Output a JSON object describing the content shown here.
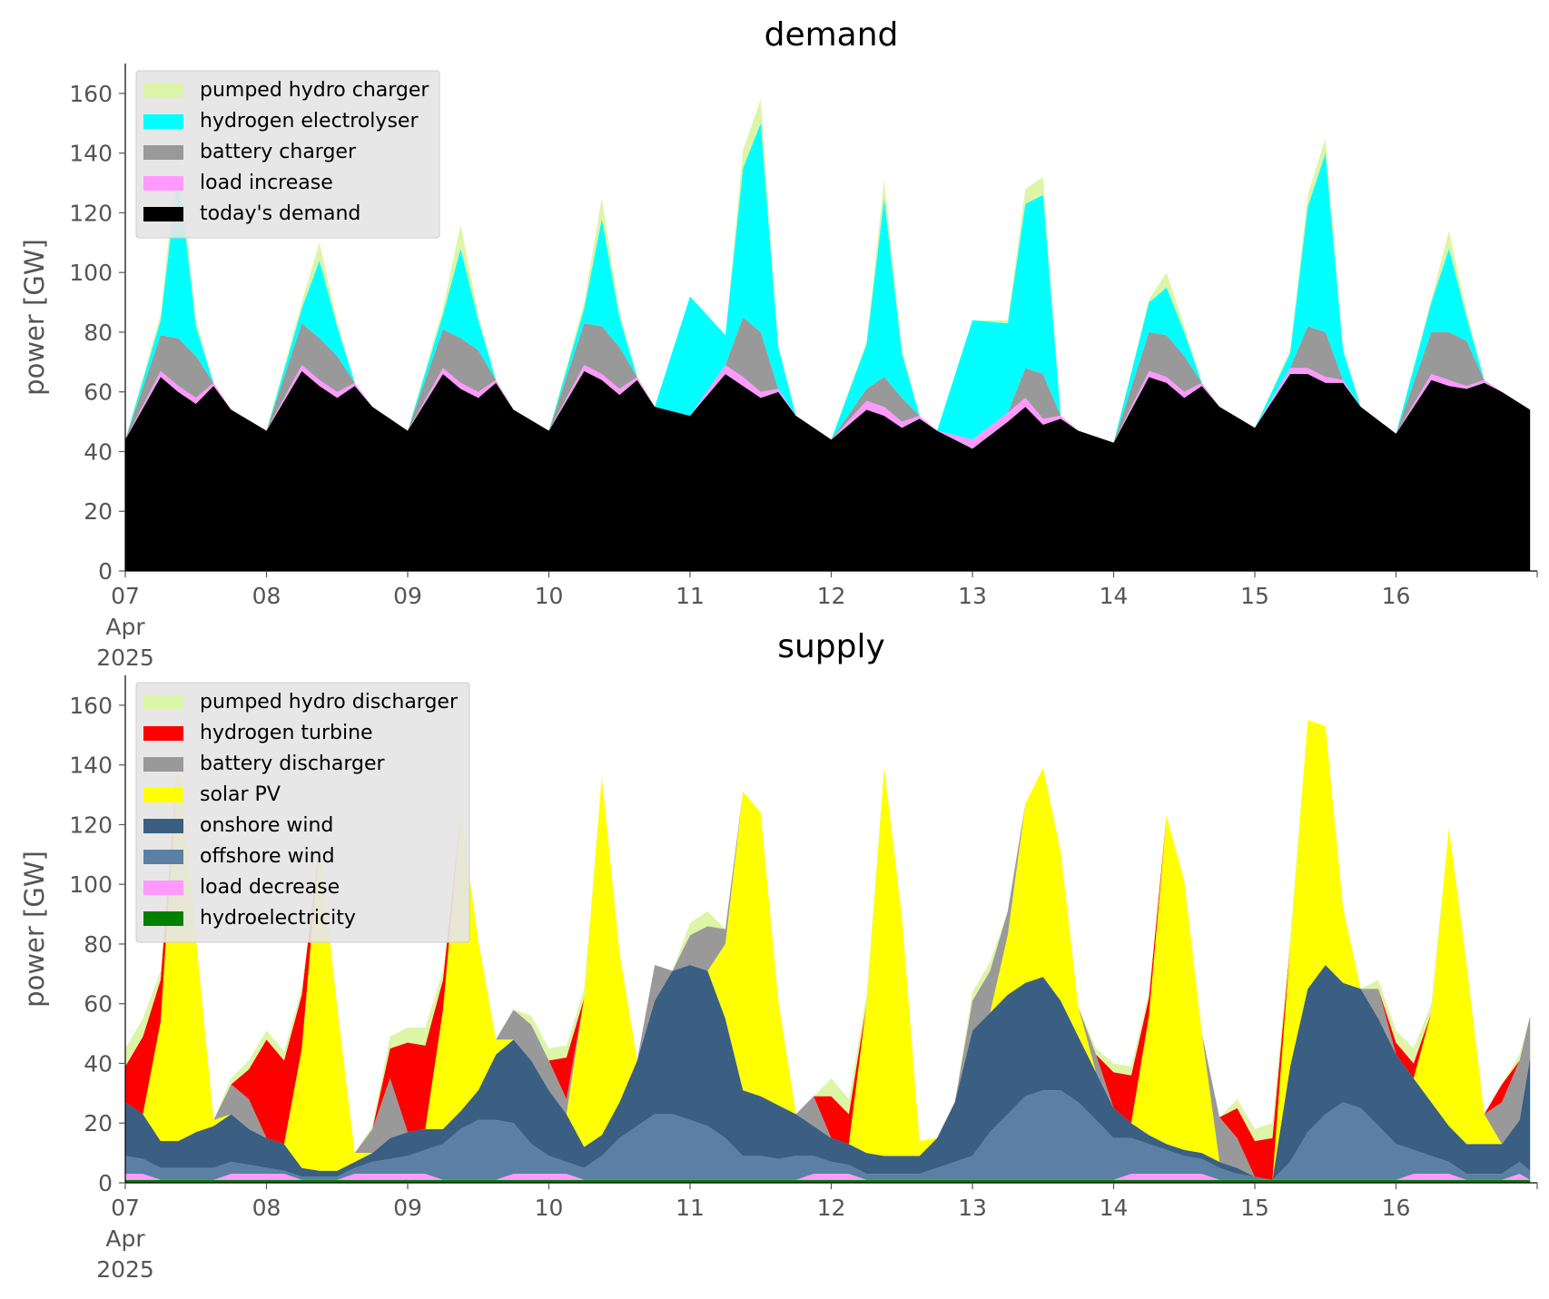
{
  "chart_data": [
    {
      "type": "area",
      "stacked": true,
      "title": "demand",
      "ylabel": "power [GW]",
      "xlabel": "",
      "x_unit": "days",
      "x_ticks": [
        "07\nApr\n2025",
        "08",
        "09",
        "10",
        "11",
        "12",
        "13",
        "14",
        "15",
        "16"
      ],
      "ylim": [
        0,
        170
      ],
      "xlim": [
        "2025-04-07",
        "2025-04-17"
      ],
      "yticks": [
        0,
        20,
        40,
        60,
        80,
        100,
        120,
        140,
        160
      ],
      "grid": false,
      "legend_position": "upper left",
      "x": [
        0,
        0.25,
        0.375,
        0.5,
        0.625,
        0.75,
        1,
        1.25,
        1.375,
        1.5,
        1.625,
        1.75,
        2,
        2.25,
        2.375,
        2.5,
        2.625,
        2.75,
        3,
        3.25,
        3.375,
        3.5,
        3.625,
        3.75,
        4,
        4.25,
        4.375,
        4.5,
        4.625,
        4.75,
        5,
        5.25,
        5.375,
        5.5,
        5.625,
        5.75,
        6,
        6.25,
        6.375,
        6.5,
        6.625,
        6.75,
        7,
        7.25,
        7.375,
        7.5,
        7.625,
        7.75,
        8,
        8.25,
        8.375,
        8.5,
        8.625,
        8.75,
        9,
        9.25,
        9.375,
        9.5,
        9.625,
        9.75,
        9.95
      ],
      "series": [
        {
          "name": "today's demand",
          "color": "#000000",
          "values": [
            44,
            65,
            60,
            56,
            62,
            54,
            47,
            67,
            62,
            58,
            62,
            55,
            47,
            66,
            61,
            58,
            63,
            54,
            47,
            67,
            64,
            59,
            64,
            55,
            52,
            66,
            62,
            58,
            60,
            52,
            44,
            54,
            52,
            48,
            51,
            47,
            41,
            50,
            55,
            49,
            51,
            47,
            43,
            65,
            63,
            58,
            62,
            55,
            48,
            66,
            66,
            63,
            63,
            55,
            46,
            64,
            62,
            61,
            63,
            60,
            54
          ]
        },
        {
          "name": "load increase",
          "color": "#ff99ff",
          "values": [
            0,
            2,
            2,
            2,
            1,
            0,
            0,
            2,
            2,
            2,
            1,
            0,
            0,
            2,
            2,
            2,
            1,
            0,
            0,
            2,
            2,
            2,
            1,
            0,
            0,
            3,
            3,
            2,
            1,
            0,
            0,
            3,
            3,
            2,
            1,
            0,
            3,
            3,
            3,
            2,
            1,
            0,
            0,
            2,
            2,
            2,
            1,
            0,
            0,
            2,
            2,
            2,
            1,
            0,
            0,
            2,
            2,
            1,
            1,
            0,
            0
          ]
        },
        {
          "name": "battery charger",
          "color": "#999999",
          "values": [
            0,
            12,
            16,
            14,
            0,
            0,
            0,
            14,
            14,
            12,
            0,
            0,
            0,
            13,
            15,
            14,
            0,
            0,
            0,
            14,
            16,
            14,
            0,
            0,
            0,
            0,
            20,
            20,
            0,
            0,
            0,
            4,
            10,
            8,
            0,
            0,
            0,
            0,
            10,
            15,
            0,
            0,
            0,
            13,
            14,
            12,
            0,
            0,
            0,
            0,
            14,
            15,
            0,
            0,
            0,
            14,
            16,
            15,
            0,
            0,
            0
          ]
        },
        {
          "name": "hydrogen electrolyser",
          "color": "#00ffff",
          "values": [
            0,
            5,
            56,
            10,
            0,
            0,
            0,
            5,
            26,
            10,
            0,
            0,
            0,
            5,
            30,
            10,
            0,
            0,
            0,
            5,
            36,
            10,
            0,
            0,
            40,
            10,
            50,
            70,
            14,
            0,
            0,
            15,
            60,
            15,
            0,
            0,
            40,
            30,
            55,
            60,
            0,
            0,
            0,
            10,
            16,
            8,
            0,
            0,
            0,
            5,
            40,
            60,
            10,
            0,
            0,
            10,
            28,
            8,
            0,
            0,
            0
          ]
        },
        {
          "name": "pumped hydro charger",
          "color": "#dcf5a6",
          "values": [
            0,
            2,
            8,
            2,
            0,
            0,
            0,
            2,
            6,
            2,
            0,
            0,
            0,
            2,
            8,
            2,
            0,
            0,
            0,
            2,
            7,
            2,
            0,
            0,
            0,
            0,
            6,
            8,
            0,
            0,
            0,
            1,
            6,
            2,
            0,
            0,
            0,
            1,
            5,
            6,
            0,
            0,
            0,
            1,
            5,
            2,
            0,
            0,
            0,
            1,
            4,
            5,
            0,
            0,
            0,
            1,
            6,
            2,
            0,
            0,
            0
          ]
        }
      ]
    },
    {
      "type": "area",
      "stacked": true,
      "title": "supply",
      "ylabel": "power [GW]",
      "xlabel": "",
      "x_unit": "days",
      "x_ticks": [
        "07\nApr\n2025",
        "08",
        "09",
        "10",
        "11",
        "12",
        "13",
        "14",
        "15",
        "16"
      ],
      "ylim": [
        0,
        170
      ],
      "xlim": [
        "2025-04-07",
        "2025-04-17"
      ],
      "yticks": [
        0,
        20,
        40,
        60,
        80,
        100,
        120,
        140,
        160
      ],
      "grid": false,
      "legend_position": "upper left",
      "x": [
        0,
        0.125,
        0.25,
        0.375,
        0.5,
        0.625,
        0.75,
        0.875,
        1,
        1.125,
        1.25,
        1.375,
        1.5,
        1.625,
        1.75,
        1.875,
        2,
        2.125,
        2.25,
        2.375,
        2.5,
        2.625,
        2.75,
        2.875,
        3,
        3.125,
        3.25,
        3.375,
        3.5,
        3.625,
        3.75,
        3.875,
        4,
        4.125,
        4.25,
        4.375,
        4.5,
        4.625,
        4.75,
        4.875,
        5,
        5.125,
        5.25,
        5.375,
        5.5,
        5.625,
        5.75,
        5.875,
        6,
        6.125,
        6.25,
        6.375,
        6.5,
        6.625,
        6.75,
        6.875,
        7,
        7.125,
        7.25,
        7.375,
        7.5,
        7.625,
        7.75,
        7.875,
        8,
        8.125,
        8.25,
        8.375,
        8.5,
        8.625,
        8.75,
        8.875,
        9,
        9.125,
        9.25,
        9.375,
        9.5,
        9.625,
        9.75,
        9.875,
        9.95
      ],
      "series": [
        {
          "name": "hydroelectricity",
          "color": "#008000",
          "values": [
            1,
            1,
            1,
            1,
            1,
            1,
            1,
            1,
            1,
            1,
            1,
            1,
            1,
            1,
            1,
            1,
            1,
            1,
            1,
            1,
            1,
            1,
            1,
            1,
            1,
            1,
            1,
            1,
            1,
            1,
            1,
            1,
            1,
            1,
            1,
            1,
            1,
            1,
            1,
            1,
            1,
            1,
            1,
            1,
            1,
            1,
            1,
            1,
            1,
            1,
            1,
            1,
            1,
            1,
            1,
            1,
            1,
            1,
            1,
            1,
            1,
            1,
            1,
            1,
            1,
            1,
            1,
            1,
            1,
            1,
            1,
            1,
            1,
            1,
            1,
            1,
            1,
            1,
            1,
            1,
            1
          ]
        },
        {
          "name": "load decrease",
          "color": "#ff99ff",
          "values": [
            2,
            2,
            0,
            0,
            0,
            0,
            2,
            2,
            2,
            2,
            0,
            0,
            0,
            2,
            2,
            2,
            2,
            2,
            0,
            0,
            0,
            0,
            2,
            2,
            2,
            2,
            0,
            0,
            0,
            0,
            0,
            0,
            0,
            0,
            0,
            0,
            0,
            0,
            0,
            2,
            2,
            2,
            0,
            0,
            0,
            0,
            0,
            0,
            0,
            0,
            0,
            0,
            0,
            0,
            0,
            0,
            0,
            2,
            2,
            2,
            2,
            2,
            0,
            0,
            0,
            0,
            0,
            0,
            0,
            0,
            0,
            0,
            0,
            2,
            2,
            2,
            0,
            0,
            0,
            2,
            0
          ]
        },
        {
          "name": "offshore wind",
          "color": "#5b80a3",
          "values": [
            6,
            5,
            4,
            4,
            4,
            4,
            4,
            3,
            2,
            1,
            1,
            1,
            1,
            2,
            4,
            5,
            6,
            8,
            12,
            17,
            20,
            20,
            17,
            10,
            6,
            4,
            4,
            8,
            14,
            18,
            22,
            22,
            20,
            18,
            14,
            8,
            8,
            7,
            8,
            6,
            4,
            3,
            2,
            2,
            2,
            2,
            4,
            6,
            8,
            16,
            22,
            28,
            30,
            30,
            26,
            20,
            14,
            12,
            10,
            8,
            6,
            5,
            4,
            2,
            1,
            0,
            6,
            16,
            22,
            26,
            24,
            18,
            12,
            8,
            6,
            4,
            2,
            2,
            2,
            4,
            3
          ]
        },
        {
          "name": "onshore wind",
          "color": "#3a5f82",
          "values": [
            18,
            15,
            9,
            9,
            12,
            14,
            16,
            12,
            10,
            9,
            3,
            2,
            2,
            2,
            3,
            7,
            8,
            7,
            5,
            6,
            10,
            22,
            28,
            28,
            22,
            16,
            7,
            7,
            12,
            22,
            38,
            48,
            52,
            52,
            40,
            22,
            20,
            18,
            14,
            10,
            8,
            7,
            7,
            6,
            6,
            6,
            10,
            20,
            42,
            40,
            40,
            38,
            38,
            30,
            22,
            16,
            10,
            5,
            3,
            2,
            2,
            2,
            2,
            2,
            0,
            0,
            32,
            48,
            50,
            40,
            40,
            36,
            30,
            24,
            18,
            12,
            10,
            10,
            10,
            14,
            38
          ]
        },
        {
          "name": "solar PV",
          "color": "#ffff00",
          "values": [
            0,
            0,
            40,
            130,
            65,
            2,
            0,
            0,
            0,
            0,
            40,
            110,
            55,
            3,
            0,
            0,
            0,
            0,
            40,
            100,
            50,
            5,
            0,
            0,
            0,
            0,
            50,
            120,
            50,
            0,
            0,
            0,
            0,
            0,
            25,
            100,
            95,
            35,
            0,
            0,
            0,
            0,
            50,
            130,
            80,
            5,
            0,
            0,
            0,
            0,
            20,
            60,
            70,
            50,
            10,
            0,
            0,
            0,
            40,
            110,
            90,
            40,
            0,
            0,
            0,
            0,
            40,
            90,
            80,
            25,
            0,
            0,
            0,
            0,
            30,
            100,
            60,
            10,
            0,
            0,
            0
          ]
        },
        {
          "name": "battery discharger",
          "color": "#999999",
          "values": [
            0,
            0,
            0,
            0,
            0,
            0,
            10,
            10,
            0,
            0,
            0,
            0,
            0,
            0,
            8,
            20,
            0,
            0,
            0,
            0,
            0,
            0,
            10,
            12,
            10,
            5,
            0,
            0,
            0,
            0,
            12,
            0,
            10,
            15,
            5,
            0,
            0,
            0,
            0,
            10,
            0,
            0,
            0,
            0,
            0,
            0,
            0,
            0,
            10,
            14,
            8,
            0,
            0,
            0,
            0,
            6,
            0,
            0,
            0,
            0,
            0,
            0,
            15,
            10,
            0,
            0,
            0,
            0,
            0,
            0,
            0,
            10,
            0,
            0,
            0,
            0,
            0,
            0,
            14,
            20,
            14
          ]
        },
        {
          "name": "hydrogen turbine",
          "color": "#ff0000",
          "values": [
            12,
            26,
            14,
            0,
            0,
            0,
            0,
            10,
            33,
            28,
            18,
            0,
            0,
            0,
            0,
            10,
            30,
            28,
            10,
            0,
            0,
            0,
            0,
            0,
            0,
            14,
            0,
            0,
            0,
            0,
            0,
            0,
            0,
            0,
            0,
            0,
            0,
            0,
            0,
            0,
            14,
            10,
            0,
            0,
            0,
            0,
            0,
            0,
            0,
            0,
            0,
            0,
            0,
            0,
            0,
            0,
            12,
            16,
            6,
            0,
            0,
            0,
            0,
            10,
            12,
            14,
            0,
            0,
            0,
            0,
            0,
            0,
            4,
            5,
            0,
            0,
            0,
            0,
            6,
            0,
            0
          ]
        },
        {
          "name": "pumped hydro discharger",
          "color": "#dcf5a6",
          "values": [
            6,
            6,
            3,
            0,
            0,
            0,
            2,
            3,
            3,
            3,
            2,
            0,
            0,
            0,
            1,
            4,
            5,
            6,
            3,
            0,
            0,
            0,
            0,
            3,
            4,
            4,
            3,
            0,
            0,
            0,
            0,
            0,
            4,
            5,
            0,
            0,
            0,
            0,
            0,
            0,
            6,
            5,
            3,
            0,
            0,
            0,
            0,
            0,
            3,
            3,
            0,
            0,
            0,
            0,
            0,
            2,
            3,
            3,
            2,
            0,
            0,
            0,
            0,
            3,
            4,
            5,
            3,
            0,
            0,
            0,
            0,
            3,
            4,
            5,
            3,
            0,
            0,
            0,
            0,
            2,
            0
          ]
        }
      ]
    }
  ]
}
